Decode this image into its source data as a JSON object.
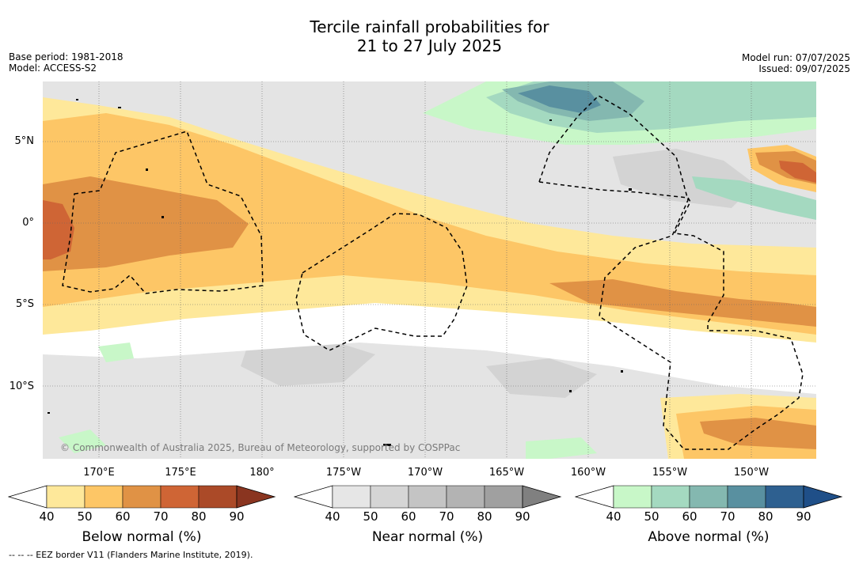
{
  "title_line1": "Tercile rainfall probabilities for",
  "title_line2": "21 to 27 July 2025",
  "base_period": "Base period: 1981-2018",
  "model": "Model: ACCESS-S2",
  "model_run": "Model run: 07/07/2025",
  "issued": "Issued: 09/07/2025",
  "copyright": "© Commonwealth of Australia 2025, Bureau of Meteorology, supported by COSPPac",
  "eez_note": "--  --  -- EEZ border V11 (Flanders Marine Institute, 2019).",
  "map": {
    "lat_labels": [
      "5°N",
      "0°",
      "5°S",
      "10°S"
    ],
    "lon_labels": [
      "170°E",
      "175°E",
      "180°",
      "175°W",
      "170°W",
      "165°W",
      "160°W",
      "155°W",
      "150°W"
    ]
  },
  "colorbars": [
    {
      "title": "Below normal (%)",
      "ticks": [
        "40",
        "50",
        "60",
        "70",
        "80",
        "90"
      ],
      "colors": [
        "#ffffff",
        "#fee89a",
        "#fdc666",
        "#e09245",
        "#cf6535",
        "#ab4a28",
        "#8a3520"
      ]
    },
    {
      "title": "Near normal (%)",
      "ticks": [
        "40",
        "50",
        "60",
        "70",
        "80",
        "90"
      ],
      "colors": [
        "#ffffff",
        "#e6e6e6",
        "#d5d5d5",
        "#c4c4c4",
        "#b3b3b3",
        "#a0a0a0",
        "#808080"
      ]
    },
    {
      "title": "Above normal (%)",
      "ticks": [
        "40",
        "50",
        "60",
        "70",
        "80",
        "90"
      ],
      "colors": [
        "#ffffff",
        "#c8f7c8",
        "#a4d9c0",
        "#84b8b0",
        "#5990a0",
        "#2e6090",
        "#1f4f88"
      ]
    }
  ]
}
